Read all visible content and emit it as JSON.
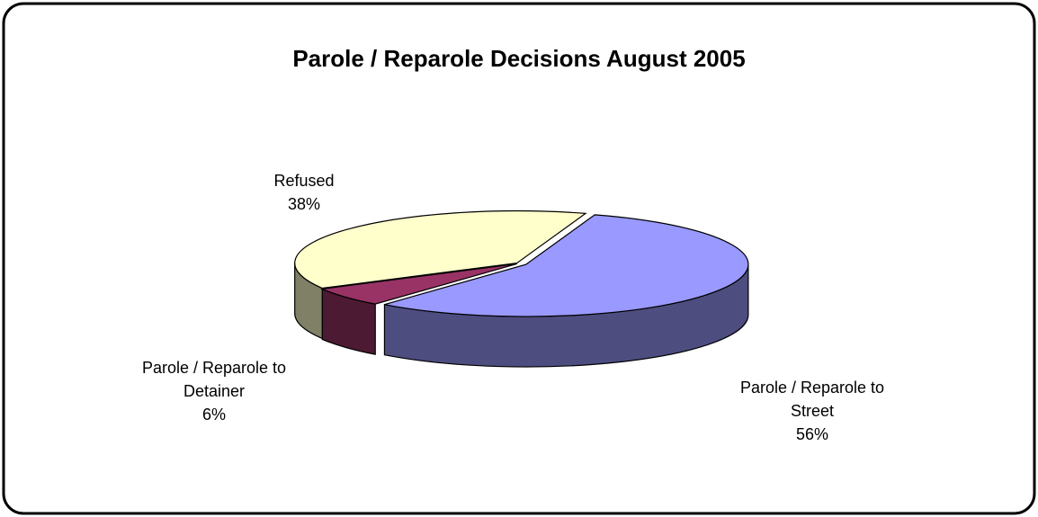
{
  "chart_data": {
    "type": "pie",
    "title": "Parole / Reparole Decisions August 2005",
    "categories": [
      "Parole / Reparole to Street",
      "Parole / Reparole to Detainer",
      "Refused"
    ],
    "values": [
      56,
      6,
      38
    ],
    "value_labels": [
      "56%",
      "6%",
      "38%"
    ],
    "colors": [
      "#9999ff",
      "#993366",
      "#ffffcc"
    ]
  }
}
